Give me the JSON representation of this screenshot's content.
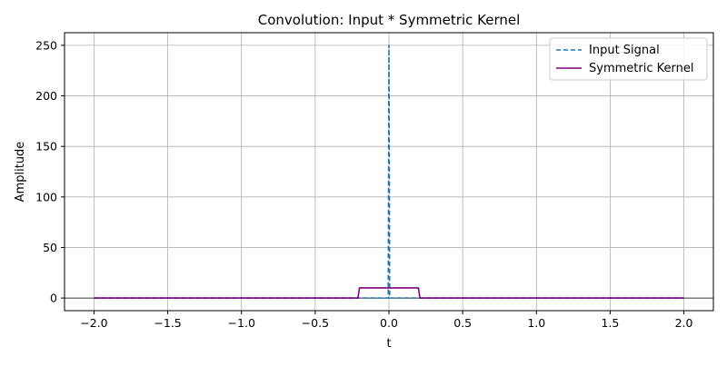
{
  "chart_data": {
    "type": "line",
    "title": "Convolution: Input * Symmetric Kernel",
    "xlabel": "t",
    "ylabel": "Amplitude",
    "xlim": [
      -2.2,
      2.2
    ],
    "ylim": [
      -12.5,
      262.5
    ],
    "xticks": [
      -2.0,
      -1.5,
      -1.0,
      -0.5,
      0.0,
      0.5,
      1.0,
      1.5,
      2.0
    ],
    "xtick_labels": [
      "−2.0",
      "−1.5",
      "−1.0",
      "−0.5",
      "0.0",
      "0.5",
      "1.0",
      "1.5",
      "2.0"
    ],
    "yticks": [
      0,
      50,
      100,
      150,
      200,
      250
    ],
    "ytick_labels": [
      "0",
      "50",
      "100",
      "150",
      "200",
      "250"
    ],
    "grid": true,
    "legend_position": "top-right",
    "hline_y": 0,
    "series": [
      {
        "name": "Input Signal",
        "color": "#1f77b4",
        "style": "dashed",
        "x": [
          -2.0,
          -0.01,
          -0.005,
          0.0,
          0.005,
          0.01,
          2.0
        ],
        "y": [
          0,
          0,
          0,
          250,
          0,
          0,
          0
        ]
      },
      {
        "name": "Symmetric Kernel",
        "color": "#800080",
        "style": "solid",
        "x": [
          -2.0,
          -0.21,
          -0.2,
          0.2,
          0.21,
          2.0
        ],
        "y": [
          0,
          0,
          10,
          10,
          0,
          0
        ]
      }
    ]
  }
}
